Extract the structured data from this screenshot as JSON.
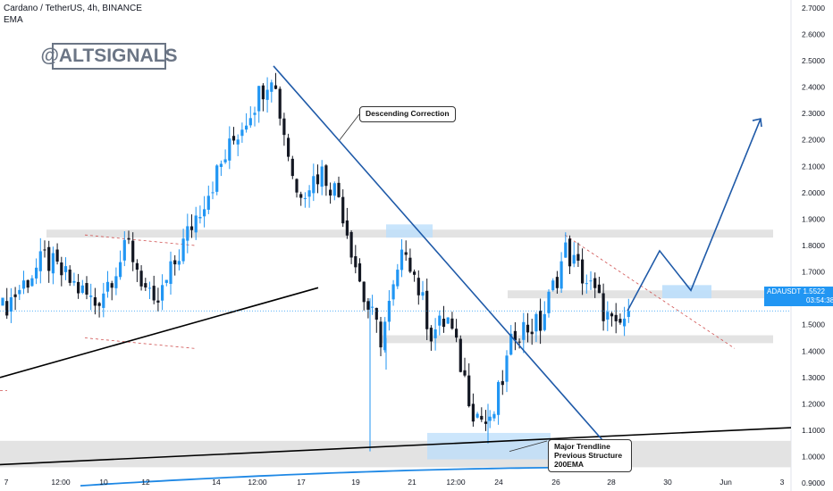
{
  "header": {
    "symbol_line": "Cardano / TetherUS, 4h, BINANCE",
    "indicator_line": "EMA"
  },
  "watermark": "@ALTSIGNALS",
  "annotations": {
    "descending": "Descending Correction",
    "major_line1": "Major Trendline",
    "major_line2": "Previous Structure",
    "major_line3": "200EMA"
  },
  "price_label": {
    "symbol": "ADAUSDT",
    "price": "1.5522",
    "countdown": "03:54:38"
  },
  "colors": {
    "bull": "#2196f3",
    "bear": "#131722",
    "trend": "#1f5aa8",
    "ema": "#1e88e5",
    "zone_gray": "#e3e3e3",
    "zone_blue": "#bbdefb"
  },
  "chart_data": {
    "type": "candlestick",
    "title": "Cardano / TetherUS, 4h, BINANCE",
    "ylim": [
      0.87,
      2.73
    ],
    "y_ticks": [
      "2.7000",
      "2.6000",
      "2.5000",
      "2.4000",
      "2.3000",
      "2.2000",
      "2.1000",
      "2.0000",
      "1.9000",
      "1.8000",
      "1.7000",
      "1.6000",
      "1.5000",
      "1.4000",
      "1.3000",
      "1.2000",
      "1.1000",
      "1.0000",
      "0.9000"
    ],
    "x_ticks": [
      "7",
      "12:00",
      "10",
      "12",
      "14",
      "12:00",
      "17",
      "19",
      "21",
      "12:00",
      "24",
      "26",
      "28",
      "30",
      "Jun",
      "3"
    ],
    "last_price": 1.5522,
    "swings": [
      {
        "bar": 0,
        "price": 1.56
      },
      {
        "bar": 10,
        "price": 1.75
      },
      {
        "bar": 22,
        "price": 1.58
      },
      {
        "bar": 30,
        "price": 1.8
      },
      {
        "bar": 36,
        "price": 1.55
      },
      {
        "bar": 45,
        "price": 1.88
      },
      {
        "bar": 55,
        "price": 2.2
      },
      {
        "bar": 64,
        "price": 2.46
      },
      {
        "bar": 70,
        "price": 2.0
      },
      {
        "bar": 76,
        "price": 2.08
      },
      {
        "bar": 80,
        "price": 1.99
      },
      {
        "bar": 86,
        "price": 1.6
      },
      {
        "bar": 90,
        "price": 1.45
      },
      {
        "bar": 96,
        "price": 1.8
      },
      {
        "bar": 102,
        "price": 1.47
      },
      {
        "bar": 106,
        "price": 1.52
      },
      {
        "bar": 112,
        "price": 1.18
      },
      {
        "bar": 116,
        "price": 1.11
      },
      {
        "bar": 122,
        "price": 1.48
      },
      {
        "bar": 128,
        "price": 1.5
      },
      {
        "bar": 134,
        "price": 1.78
      },
      {
        "bar": 140,
        "price": 1.64
      },
      {
        "bar": 146,
        "price": 1.47
      },
      {
        "bar": 149,
        "price": 1.5522
      }
    ],
    "projection": [
      1.5522,
      1.78,
      1.63,
      2.28
    ],
    "horizontal_zones": [
      {
        "low": 1.83,
        "high": 1.86,
        "color": "gray"
      },
      {
        "low": 1.6,
        "high": 1.63,
        "color": "gray"
      },
      {
        "low": 1.43,
        "high": 1.46,
        "color": "gray"
      },
      {
        "low": 0.96,
        "high": 1.06,
        "color": "gray"
      },
      {
        "low": 0.99,
        "high": 1.09,
        "color": "blue"
      }
    ],
    "descending_trendline": {
      "from": 2.48,
      "to": 1.04
    },
    "major_trendline": {
      "from": 0.97,
      "to": 1.11
    },
    "ema200": {
      "from": 0.89,
      "to": 0.96
    },
    "grid": false,
    "legend": "none"
  }
}
